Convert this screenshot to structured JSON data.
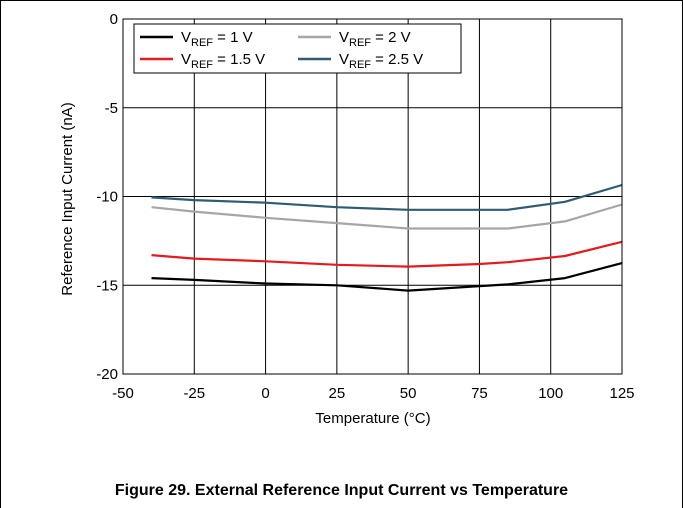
{
  "figure_caption": "Figure 29. External Reference Input Current vs Temperature",
  "chart_data": {
    "type": "line",
    "title": "",
    "xlabel": "Temperature (°C)",
    "ylabel": "Reference Input Current (nA)",
    "xlim": [
      -50,
      125
    ],
    "ylim": [
      -20,
      0
    ],
    "x_ticks": [
      -50,
      -25,
      0,
      25,
      50,
      75,
      100,
      125
    ],
    "y_ticks": [
      0,
      -5,
      -10,
      -15,
      -20
    ],
    "grid": true,
    "legend_position": "top-left",
    "x": [
      -40,
      -25,
      0,
      25,
      50,
      75,
      85,
      105,
      125
    ],
    "series": [
      {
        "name": "V_REF = 1 V",
        "label_main": "V",
        "label_sub": "REF",
        "label_rest": " = 1 V",
        "color": "#000000",
        "values": [
          -14.6,
          -14.7,
          -14.9,
          -15.0,
          -15.3,
          -15.05,
          -14.95,
          -14.6,
          -13.75
        ]
      },
      {
        "name": "V_REF = 1.5 V",
        "label_main": "V",
        "label_sub": "REF",
        "label_rest": " = 1.5 V",
        "color": "#e41a1c",
        "values": [
          -13.3,
          -13.5,
          -13.65,
          -13.85,
          -13.95,
          -13.8,
          -13.7,
          -13.35,
          -12.55
        ]
      },
      {
        "name": "V_REF = 2 V",
        "label_main": "V",
        "label_sub": "REF",
        "label_rest": " = 2 V",
        "color": "#a6a6a6",
        "values": [
          -10.6,
          -10.85,
          -11.2,
          -11.5,
          -11.8,
          -11.8,
          -11.8,
          -11.4,
          -10.45
        ]
      },
      {
        "name": "V_REF = 2.5 V",
        "label_main": "V",
        "label_sub": "REF",
        "label_rest": " = 2.5 V",
        "color": "#2f5b73",
        "values": [
          -10.05,
          -10.2,
          -10.35,
          -10.6,
          -10.75,
          -10.75,
          -10.75,
          -10.3,
          -9.35
        ]
      }
    ],
    "legend_order": [
      0,
      2,
      1,
      3
    ]
  }
}
